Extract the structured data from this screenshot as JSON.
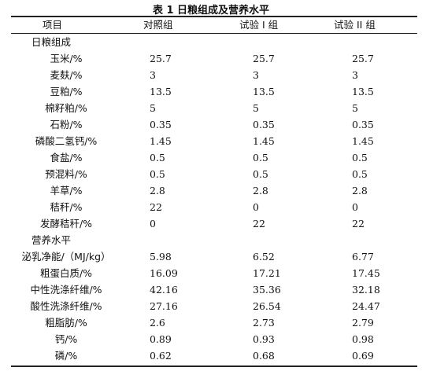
{
  "title": "表 1   日粮组成及营养水平",
  "headers": [
    "项目",
    "对照组",
    "试验 I 组",
    "试验 II 组"
  ],
  "sections": [
    {
      "label": "日粮组成"
    },
    {
      "label": "营养水平"
    }
  ],
  "rows": [
    [
      "玉米/%",
      "25.7",
      "25.7",
      "25.7"
    ],
    [
      "麦麸/%",
      "3",
      "3",
      "3"
    ],
    [
      "豆粕/%",
      "13.5",
      "13.5",
      "13.5"
    ],
    [
      "棉籽粕/%",
      "5",
      "5",
      "5"
    ],
    [
      "石粉/%",
      "0.35",
      "0.35",
      "0.35"
    ],
    [
      "磷酸二氢钙/%",
      "1.45",
      "1.45",
      "1.45"
    ],
    [
      "食盐/%",
      "0.5",
      "0.5",
      "0.5"
    ],
    [
      "预混料/%",
      "0.5",
      "0.5",
      "0.5"
    ],
    [
      "羊草/%",
      "2.8",
      "2.8",
      "2.8"
    ],
    [
      "秸秆/%",
      "22",
      "0",
      "0"
    ],
    [
      "发酵秸秆/%",
      "0",
      "22",
      "22"
    ],
    [
      "泌乳净能/（MJ/kg）",
      "5.98",
      "6.52",
      "6.77"
    ],
    [
      "粗蛋白质/%",
      "16.09",
      "17.21",
      "17.45"
    ],
    [
      "中性洗涤纤维/%",
      "42.16",
      "35.36",
      "32.18"
    ],
    [
      "酸性洗涤纤维/%",
      "27.16",
      "26.54",
      "24.47"
    ],
    [
      "粗脂肪/%",
      "2.6",
      "2.73",
      "2.79"
    ],
    [
      "钙/%",
      "0.89",
      "0.93",
      "0.98"
    ],
    [
      "磷/%",
      "0.62",
      "0.68",
      "0.69"
    ]
  ]
}
